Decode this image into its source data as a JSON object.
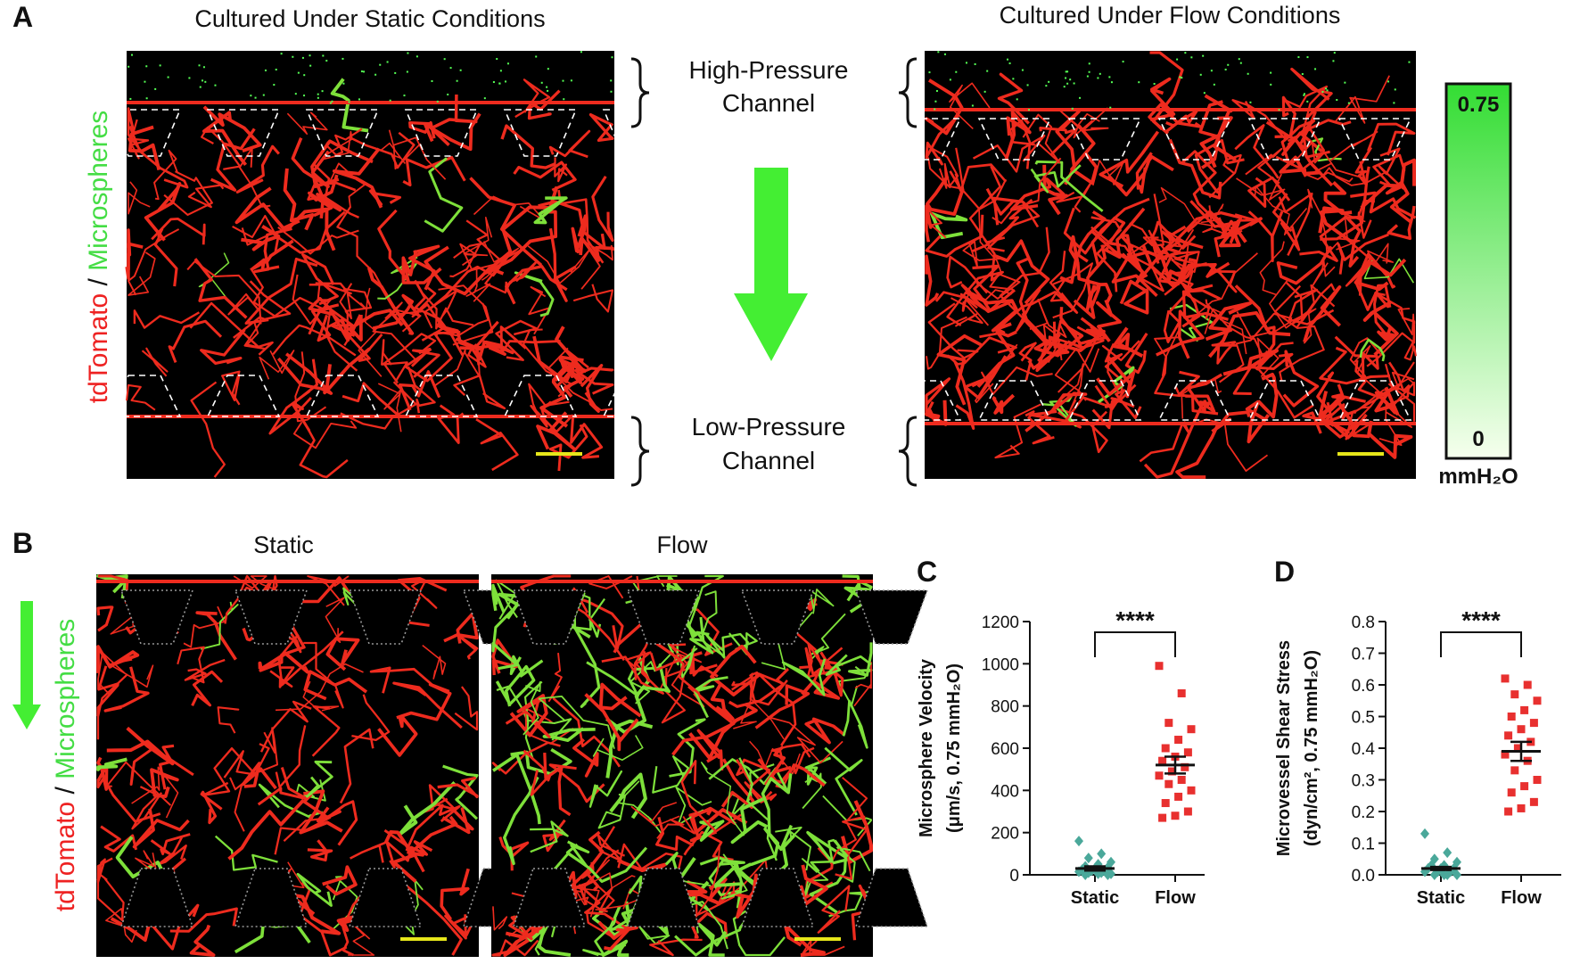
{
  "panel_a": {
    "label": "A",
    "title_static": "Cultured Under Static Conditions",
    "title_flow": "Cultured Under Flow Conditions",
    "side_label": {
      "red": "tdTomato",
      "sep": " / ",
      "green": "Microspheres"
    },
    "high_pressure": [
      "High-Pressure",
      "Channel"
    ],
    "low_pressure": [
      "Low-Pressure",
      "Channel"
    ],
    "colorbar": {
      "max": "0.75",
      "min": "0",
      "unit": "mmH₂O"
    }
  },
  "panel_b": {
    "label": "B",
    "title_static": "Static",
    "title_flow": "Flow",
    "side_label": {
      "red": "tdTomato",
      "sep": " / ",
      "green": "Microspheres"
    }
  },
  "chart_data": [
    {
      "type": "dot",
      "label": "C",
      "ylabel": [
        "Microsphere Velocity",
        "(μm/s, 0.75 mmH₂O)"
      ],
      "categories": [
        "Static",
        "Flow"
      ],
      "significance": "****",
      "ylim": [
        0,
        1200
      ],
      "yticks": [
        0,
        200,
        400,
        600,
        800,
        1000,
        1200
      ],
      "groups": [
        {
          "color": "#4aa89a",
          "marker": "diamond",
          "mean": 30,
          "sem": 10,
          "values": [
            160,
            100,
            80,
            60,
            50,
            40,
            35,
            30,
            25,
            20,
            20,
            15,
            10,
            10,
            5,
            5,
            0,
            0
          ]
        },
        {
          "color": "#e8302f",
          "marker": "square",
          "mean": 520,
          "sem": 40,
          "values": [
            990,
            860,
            720,
            690,
            640,
            600,
            580,
            560,
            540,
            510,
            490,
            470,
            450,
            430,
            400,
            370,
            340,
            300,
            280,
            270
          ]
        }
      ]
    },
    {
      "type": "dot",
      "label": "D",
      "ylabel": [
        "Microvessel Shear Stress",
        "(dyn/cm², 0.75 mmH₂O)"
      ],
      "categories": [
        "Static",
        "Flow"
      ],
      "significance": "****",
      "ylim": [
        0,
        0.8
      ],
      "yticks": [
        {
          "value": 0,
          "label": "0.0"
        },
        0.1,
        0.2,
        0.3,
        0.4,
        0.5,
        0.6,
        0.7,
        0.8
      ],
      "groups": [
        {
          "color": "#4aa89a",
          "marker": "diamond",
          "mean": 0.02,
          "sem": 0.005,
          "values": [
            0.13,
            0.07,
            0.05,
            0.04,
            0.03,
            0.03,
            0.02,
            0.02,
            0.02,
            0.01,
            0.01,
            0.01,
            0,
            0,
            0,
            0
          ]
        },
        {
          "color": "#e8302f",
          "marker": "square",
          "mean": 0.39,
          "sem": 0.03,
          "values": [
            0.62,
            0.6,
            0.57,
            0.55,
            0.52,
            0.5,
            0.48,
            0.46,
            0.44,
            0.42,
            0.4,
            0.38,
            0.36,
            0.33,
            0.3,
            0.28,
            0.26,
            0.23,
            0.21,
            0.2
          ]
        }
      ]
    }
  ]
}
